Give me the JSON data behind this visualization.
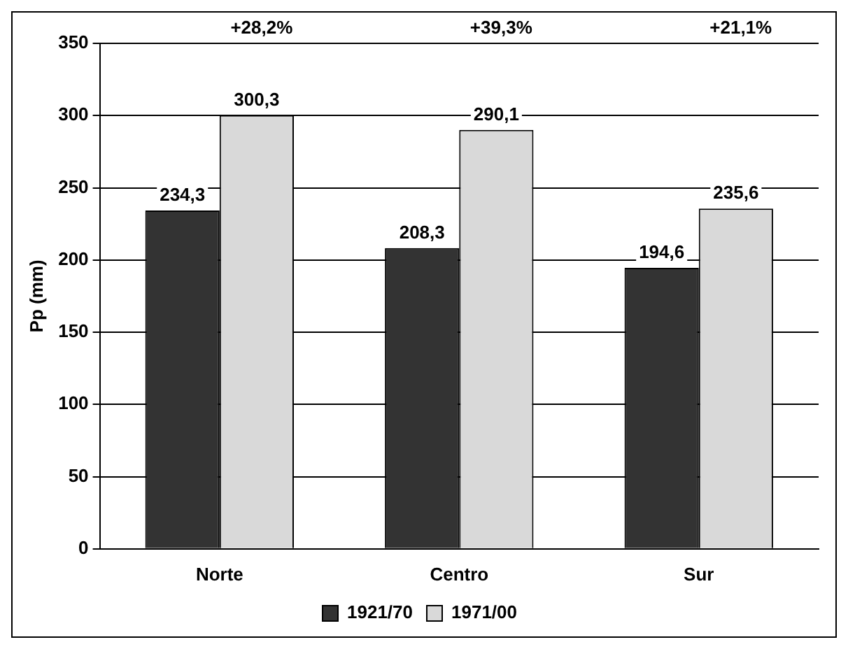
{
  "chart_data": {
    "type": "bar",
    "ylabel": "Pp (mm)",
    "categories": [
      "Norte",
      "Centro",
      "Sur"
    ],
    "series": [
      {
        "name": "1921/70",
        "color": "#333333",
        "values": [
          234.3,
          208.3,
          194.6
        ],
        "value_labels": [
          "234,3",
          "208,3",
          "194,6"
        ]
      },
      {
        "name": "1971/00",
        "color": "#d9d9d9",
        "values": [
          300.3,
          290.1,
          235.6
        ],
        "value_labels": [
          "300,3",
          "290,1",
          "235,6"
        ]
      }
    ],
    "annotations": [
      "+28,2%",
      "+39,3%",
      "+21,1%"
    ],
    "ylim": [
      0,
      350
    ],
    "yticks": [
      0,
      50,
      100,
      150,
      200,
      250,
      300,
      350
    ],
    "grid": "y",
    "legend": "bottom"
  }
}
